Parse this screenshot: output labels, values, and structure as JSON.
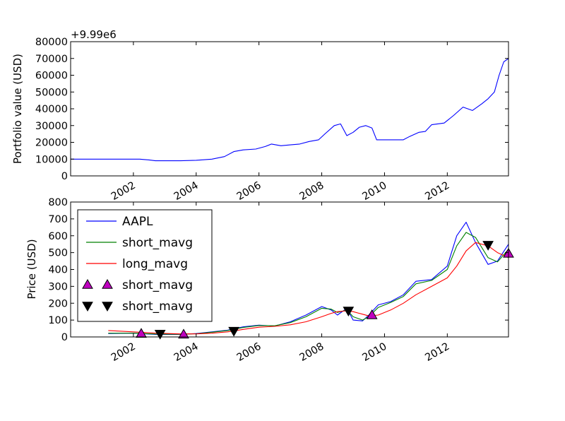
{
  "chart_data": [
    {
      "type": "line",
      "offset_label": "+9.99e6",
      "ylabel": "Portfolio value (USD)",
      "ylim": [
        0,
        80000
      ],
      "yticks": [
        0,
        10000,
        20000,
        30000,
        40000,
        50000,
        60000,
        70000,
        80000
      ],
      "ytick_labels": [
        "0",
        "10000",
        "20000",
        "30000",
        "40000",
        "50000",
        "60000",
        "70000",
        "80000"
      ],
      "xlim": [
        2000.0,
        2013.95
      ],
      "xticks": [
        2002,
        2004,
        2006,
        2008,
        2010,
        2012
      ],
      "xtick_labels": [
        "2002",
        "2004",
        "2006",
        "2008",
        "2010",
        "2012"
      ],
      "legend": "none",
      "series": [
        {
          "color": "#0000ff",
          "points": [
            [
              2000.0,
              10000
            ],
            [
              2002.2,
              10000
            ],
            [
              2002.5,
              9500
            ],
            [
              2002.7,
              9000
            ],
            [
              2003.5,
              9000
            ],
            [
              2004.0,
              9300
            ],
            [
              2004.5,
              10000
            ],
            [
              2004.9,
              11500
            ],
            [
              2005.2,
              14500
            ],
            [
              2005.5,
              15500
            ],
            [
              2005.9,
              16000
            ],
            [
              2006.2,
              17500
            ],
            [
              2006.4,
              19000
            ],
            [
              2006.7,
              18000
            ],
            [
              2007.0,
              18500
            ],
            [
              2007.3,
              19000
            ],
            [
              2007.6,
              20500
            ],
            [
              2007.9,
              21500
            ],
            [
              2008.1,
              25000
            ],
            [
              2008.4,
              30000
            ],
            [
              2008.6,
              31000
            ],
            [
              2008.8,
              24000
            ],
            [
              2009.0,
              26000
            ],
            [
              2009.2,
              29000
            ],
            [
              2009.4,
              30000
            ],
            [
              2009.6,
              28500
            ],
            [
              2009.75,
              21500
            ],
            [
              2010.2,
              21500
            ],
            [
              2010.6,
              21500
            ],
            [
              2010.8,
              23500
            ],
            [
              2011.1,
              26000
            ],
            [
              2011.3,
              26500
            ],
            [
              2011.5,
              30500
            ],
            [
              2011.9,
              31500
            ],
            [
              2012.2,
              36000
            ],
            [
              2012.5,
              41000
            ],
            [
              2012.8,
              39000
            ],
            [
              2013.1,
              43000
            ],
            [
              2013.3,
              46000
            ],
            [
              2013.5,
              50000
            ],
            [
              2013.65,
              60000
            ],
            [
              2013.8,
              68000
            ],
            [
              2013.95,
              70000
            ]
          ]
        }
      ]
    },
    {
      "type": "line",
      "ylabel": "Price (USD)",
      "ylim": [
        0,
        800
      ],
      "yticks": [
        0,
        100,
        200,
        300,
        400,
        500,
        600,
        700,
        800
      ],
      "ytick_labels": [
        "0",
        "100",
        "200",
        "300",
        "400",
        "500",
        "600",
        "700",
        "800"
      ],
      "xlim": [
        2000.0,
        2013.95
      ],
      "xticks": [
        2002,
        2004,
        2006,
        2008,
        2010,
        2012
      ],
      "xtick_labels": [
        "2002",
        "2004",
        "2006",
        "2008",
        "2010",
        "2012"
      ],
      "legend": "upper-left",
      "series": [
        {
          "name": "AAPL",
          "color": "#0000ff",
          "points": [
            [
              2001.2,
              20
            ],
            [
              2002.0,
              22
            ],
            [
              2002.7,
              15
            ],
            [
              2003.5,
              15
            ],
            [
              2004.0,
              20
            ],
            [
              2004.5,
              30
            ],
            [
              2005.0,
              40
            ],
            [
              2005.5,
              60
            ],
            [
              2006.0,
              70
            ],
            [
              2006.5,
              65
            ],
            [
              2007.0,
              90
            ],
            [
              2007.5,
              130
            ],
            [
              2008.0,
              180
            ],
            [
              2008.3,
              160
            ],
            [
              2008.5,
              130
            ],
            [
              2008.8,
              170
            ],
            [
              2009.0,
              100
            ],
            [
              2009.3,
              95
            ],
            [
              2009.5,
              130
            ],
            [
              2009.8,
              190
            ],
            [
              2010.2,
              210
            ],
            [
              2010.6,
              250
            ],
            [
              2011.0,
              330
            ],
            [
              2011.5,
              340
            ],
            [
              2012.0,
              420
            ],
            [
              2012.3,
              600
            ],
            [
              2012.6,
              680
            ],
            [
              2012.9,
              560
            ],
            [
              2013.3,
              430
            ],
            [
              2013.6,
              450
            ],
            [
              2013.95,
              550
            ]
          ]
        },
        {
          "name": "short_mavg",
          "color": "#008000",
          "points": [
            [
              2001.2,
              22
            ],
            [
              2002.0,
              22
            ],
            [
              2002.7,
              17
            ],
            [
              2003.5,
              16
            ],
            [
              2004.0,
              19
            ],
            [
              2004.5,
              28
            ],
            [
              2005.0,
              38
            ],
            [
              2005.5,
              56
            ],
            [
              2006.0,
              68
            ],
            [
              2006.5,
              66
            ],
            [
              2007.0,
              85
            ],
            [
              2007.5,
              120
            ],
            [
              2008.0,
              170
            ],
            [
              2008.3,
              165
            ],
            [
              2008.5,
              145
            ],
            [
              2008.8,
              160
            ],
            [
              2009.0,
              120
            ],
            [
              2009.3,
              100
            ],
            [
              2009.5,
              120
            ],
            [
              2009.8,
              175
            ],
            [
              2010.2,
              205
            ],
            [
              2010.6,
              240
            ],
            [
              2011.0,
              315
            ],
            [
              2011.5,
              335
            ],
            [
              2012.0,
              400
            ],
            [
              2012.3,
              540
            ],
            [
              2012.6,
              620
            ],
            [
              2012.9,
              590
            ],
            [
              2013.3,
              470
            ],
            [
              2013.6,
              445
            ],
            [
              2013.95,
              520
            ]
          ]
        },
        {
          "name": "long_mavg",
          "color": "#ff0000",
          "points": [
            [
              2001.2,
              38
            ],
            [
              2002.0,
              30
            ],
            [
              2002.7,
              22
            ],
            [
              2003.5,
              18
            ],
            [
              2004.0,
              18
            ],
            [
              2004.5,
              22
            ],
            [
              2005.0,
              30
            ],
            [
              2005.5,
              45
            ],
            [
              2006.0,
              58
            ],
            [
              2006.5,
              63
            ],
            [
              2007.0,
              72
            ],
            [
              2007.5,
              90
            ],
            [
              2008.0,
              120
            ],
            [
              2008.3,
              140
            ],
            [
              2008.5,
              150
            ],
            [
              2008.8,
              155
            ],
            [
              2009.0,
              150
            ],
            [
              2009.3,
              135
            ],
            [
              2009.5,
              125
            ],
            [
              2009.8,
              130
            ],
            [
              2010.2,
              160
            ],
            [
              2010.6,
              200
            ],
            [
              2011.0,
              250
            ],
            [
              2011.5,
              300
            ],
            [
              2012.0,
              350
            ],
            [
              2012.3,
              420
            ],
            [
              2012.6,
              510
            ],
            [
              2012.9,
              560
            ],
            [
              2013.3,
              540
            ],
            [
              2013.6,
              500
            ],
            [
              2013.95,
              470
            ]
          ]
        }
      ],
      "buy_markers": {
        "name": "short_mavg",
        "color": "#bf00bf",
        "points": [
          [
            2002.25,
            20
          ],
          [
            2003.6,
            15
          ],
          [
            2009.6,
            130
          ],
          [
            2013.95,
            495
          ]
        ]
      },
      "sell_markers": {
        "name": "short_mavg",
        "color": "#000000",
        "points": [
          [
            2002.85,
            18
          ],
          [
            2005.2,
            35
          ],
          [
            2008.85,
            155
          ],
          [
            2013.3,
            545
          ]
        ]
      }
    }
  ]
}
